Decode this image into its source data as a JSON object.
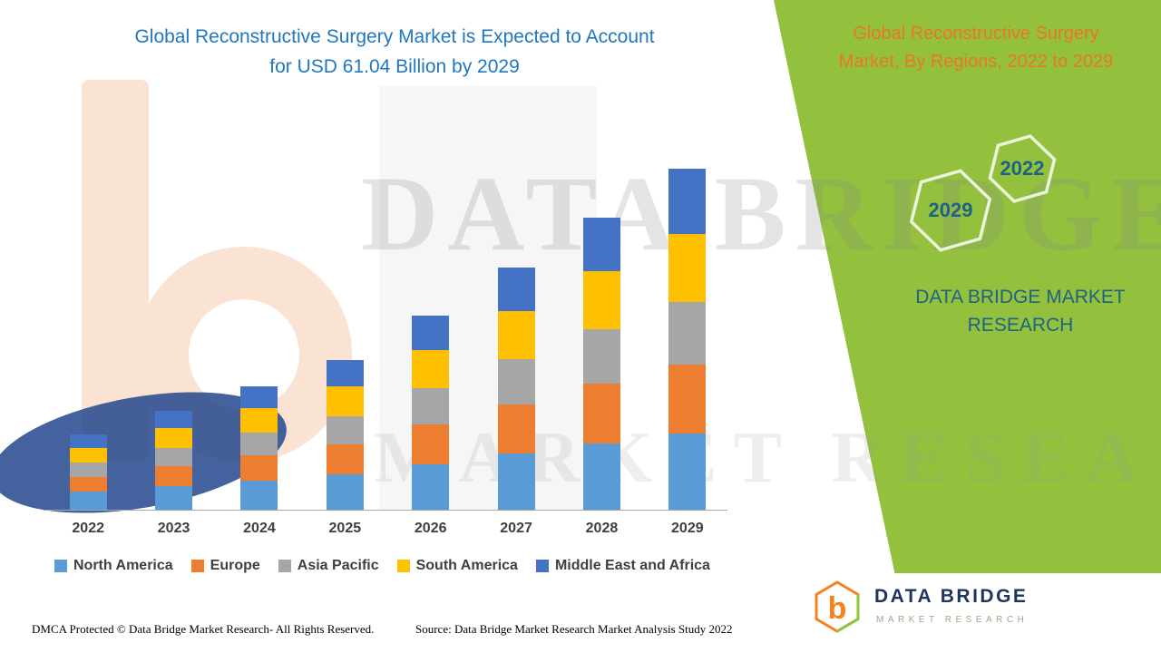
{
  "title": {
    "lines": [
      "Global Reconstructive Surgery Market is Expected to Account",
      "for USD 61.04 Billion by 2029"
    ]
  },
  "panel": {
    "title_lines": [
      "Global Reconstructive Surgery",
      "Market, By Regions, 2022 to 2029"
    ],
    "hexagons": [
      {
        "label": "2029"
      },
      {
        "label": "2022"
      }
    ],
    "brand_lines": [
      "DATA BRIDGE MARKET",
      "RESEARCH"
    ]
  },
  "watermark": {
    "line1": "DATA BRIDGE",
    "line2": "MARKET RESEARCH"
  },
  "logo": {
    "name": "DATA BRIDGE",
    "tagline": "MARKET RESEARCH",
    "monogram": "b"
  },
  "footer": {
    "dmca": "DMCA Protected © Data Bridge Market Research- All Rights Reserved.",
    "source": "Source: Data Bridge Market Research Market Analysis Study 2022"
  },
  "colors": {
    "panel_green": "#93C13E",
    "title_blue": "#2077BE",
    "panel_orange": "#E8791D",
    "brand_teal": "#1E6285",
    "logo_navy": "#1C355E",
    "logo_orange": "#F58220",
    "logo_green": "#8CC63E"
  },
  "chart_data": {
    "type": "bar",
    "stacked": true,
    "title": "Global Reconstructive Surgery Market is Expected to Account for USD 61.04 Billion by 2029",
    "unit": "USD Billion",
    "categories": [
      "2022",
      "2023",
      "2024",
      "2025",
      "2026",
      "2027",
      "2028",
      "2029"
    ],
    "series": [
      {
        "name": "North America",
        "color": "#5B9BD5",
        "values": [
          3.2,
          4.2,
          5.2,
          6.3,
          8.1,
          10.0,
          11.9,
          13.7
        ]
      },
      {
        "name": "Europe",
        "color": "#ED7D31",
        "values": [
          2.7,
          3.6,
          4.5,
          5.4,
          7.1,
          8.8,
          10.6,
          12.2
        ]
      },
      {
        "name": "Asia Pacific",
        "color": "#A6A6A6",
        "values": [
          2.5,
          3.3,
          4.1,
          5.0,
          6.5,
          8.1,
          9.8,
          11.3
        ]
      },
      {
        "name": "South America",
        "color": "#FFC000",
        "values": [
          2.7,
          3.5,
          4.4,
          5.3,
          6.9,
          8.6,
          10.4,
          12.1
        ]
      },
      {
        "name": "Middle East and Africa",
        "color": "#4472C4",
        "values": [
          2.4,
          3.1,
          3.9,
          4.7,
          6.2,
          7.8,
          9.5,
          11.7
        ]
      }
    ],
    "totals": [
      13.5,
      17.7,
      22.1,
      26.7,
      34.8,
      43.3,
      52.2,
      61.04
    ],
    "ylim": [
      0,
      62
    ],
    "grid": false,
    "legend_position": "bottom"
  }
}
